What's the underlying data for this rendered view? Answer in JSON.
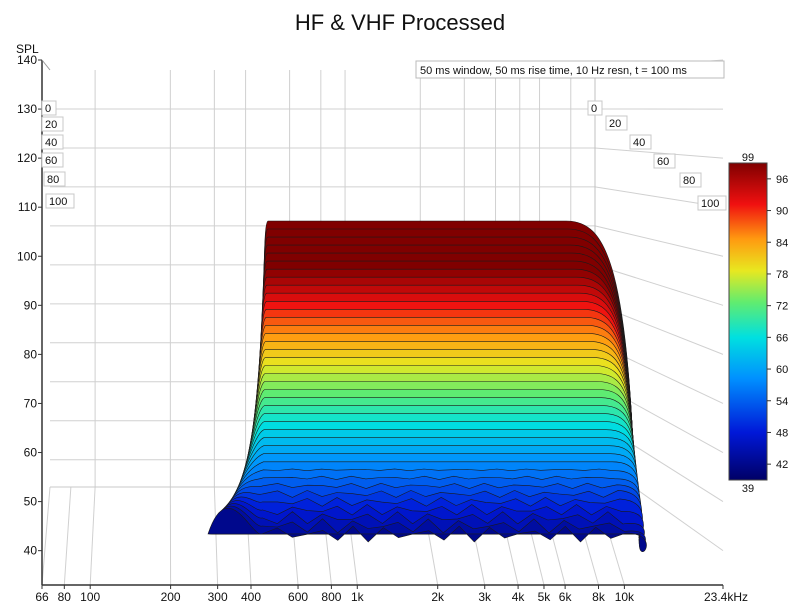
{
  "chart_data": {
    "type": "waterfall",
    "title": "HF & VHF Processed",
    "ylabel": "SPL",
    "annotation": "50 ms window, 50 ms rise time,  10 Hz resn, t = 100 ms",
    "x_scale": "log",
    "x_ticks": [
      "66",
      "80",
      "100",
      "200",
      "300",
      "400",
      "600",
      "800",
      "1k",
      "2k",
      "3k",
      "4k",
      "5k",
      "6k",
      "8k",
      "10k",
      "23.4kHz"
    ],
    "x_tick_values": [
      66,
      80,
      100,
      200,
      300,
      400,
      600,
      800,
      1000,
      2000,
      3000,
      4000,
      5000,
      6000,
      8000,
      10000,
      23400
    ],
    "ylim": [
      33,
      140
    ],
    "y_ticks": [
      40,
      50,
      60,
      70,
      80,
      90,
      100,
      110,
      120,
      130,
      140
    ],
    "time_ticks_ms": [
      "0",
      "20",
      "40",
      "60",
      "80",
      "100"
    ],
    "colorbar": {
      "min_label": "39",
      "max_label": "99",
      "ticks": [
        "96",
        "90",
        "84",
        "78",
        "72",
        "66",
        "60",
        "54",
        "48",
        "42"
      ],
      "range": [
        39,
        99
      ]
    },
    "surface": {
      "f_start_hz": 280,
      "f_knee_hz": 450,
      "f_roll_hz": 6500,
      "f_end_hz": 10500,
      "level_front_db": 108,
      "level_back_db": 42,
      "slices": 40
    }
  },
  "labels": {
    "title": "HF & VHF Processed",
    "ylabel": "SPL",
    "annotation": "50 ms window, 50 ms rise time,  10 Hz resn, t = 100 ms",
    "cb_min": "39",
    "cb_max": "99"
  }
}
